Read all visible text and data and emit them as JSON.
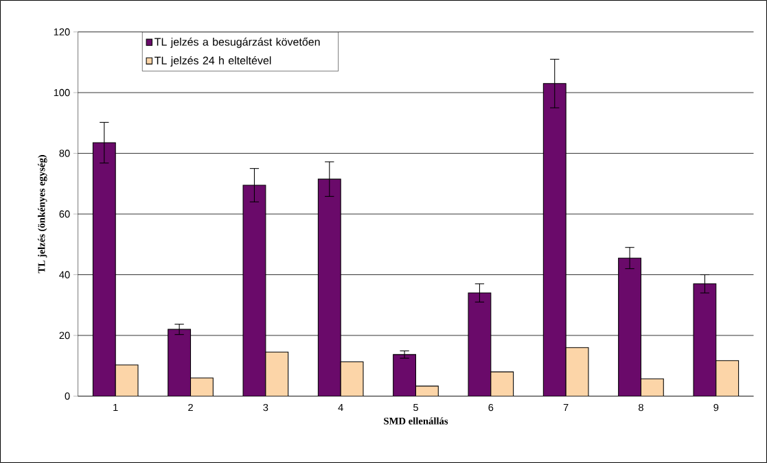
{
  "chart_data": {
    "type": "bar",
    "xlabel": "SMD ellenállás",
    "ylabel": "TL jelzés (önkényes egység)",
    "categories": [
      "1",
      "2",
      "3",
      "4",
      "5",
      "6",
      "7",
      "8",
      "9"
    ],
    "series": [
      {
        "name": "TL jelzés a besugárzást követően",
        "color": "#6a0a6a",
        "values": [
          83.5,
          22,
          69.5,
          71.5,
          13.7,
          34,
          103,
          45.5,
          37
        ],
        "errors": [
          6.7,
          1.7,
          5.5,
          5.7,
          1.2,
          3,
          8,
          3.5,
          3
        ]
      },
      {
        "name": "TL jelzés 24 h elteltével",
        "color": "#fcd5a8",
        "values": [
          10.3,
          6,
          14.5,
          11.3,
          3.3,
          8,
          16,
          5.7,
          11.7
        ]
      }
    ],
    "ylim": [
      0,
      120
    ],
    "yticks": [
      0,
      20,
      40,
      60,
      80,
      100,
      120
    ],
    "grid": "y",
    "legend": "top left"
  }
}
